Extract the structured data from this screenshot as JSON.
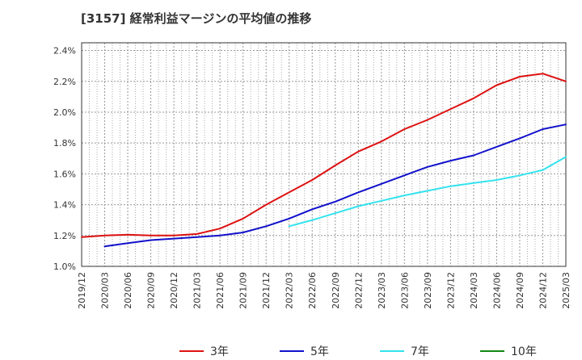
{
  "title": "[3157]  経常利益マージンの平均値の推移",
  "chart_data": {
    "type": "line",
    "title": "[3157]  経常利益マージンの平均値の推移",
    "xlabel": "",
    "ylabel": "",
    "x_ticks": [
      "2019/12",
      "2020/03",
      "2020/06",
      "2020/09",
      "2020/12",
      "2021/03",
      "2021/06",
      "2021/09",
      "2021/12",
      "2022/03",
      "2022/06",
      "2022/09",
      "2022/12",
      "2023/03",
      "2023/06",
      "2023/09",
      "2023/12",
      "2024/03",
      "2024/06",
      "2024/09",
      "2024/12",
      "2025/03"
    ],
    "y_ticks": [
      "1.0%",
      "1.2%",
      "1.4%",
      "1.6%",
      "1.8%",
      "2.0%",
      "2.2%",
      "2.4%"
    ],
    "ylim": [
      1.0,
      2.45
    ],
    "grid": true,
    "legend_position": "bottom",
    "series": [
      {
        "name": "3年",
        "color": "#dd1111",
        "points": [
          [
            "2019/12",
            1.19
          ],
          [
            "2020/03",
            1.2
          ],
          [
            "2020/06",
            1.205
          ],
          [
            "2020/09",
            1.2
          ],
          [
            "2020/12",
            1.2
          ],
          [
            "2021/03",
            1.21
          ],
          [
            "2021/06",
            1.245
          ],
          [
            "2021/09",
            1.31
          ],
          [
            "2021/12",
            1.4
          ],
          [
            "2022/03",
            1.48
          ],
          [
            "2022/06",
            1.56
          ],
          [
            "2022/09",
            1.655
          ],
          [
            "2022/12",
            1.745
          ],
          [
            "2023/03",
            1.81
          ],
          [
            "2023/06",
            1.89
          ],
          [
            "2023/09",
            1.95
          ],
          [
            "2023/12",
            2.02
          ],
          [
            "2024/03",
            2.09
          ],
          [
            "2024/06",
            2.175
          ],
          [
            "2024/09",
            2.23
          ],
          [
            "2024/12",
            2.25
          ],
          [
            "2025/03",
            2.2
          ]
        ]
      },
      {
        "name": "5年",
        "color": "#1111cc",
        "points": [
          [
            "2020/03",
            1.13
          ],
          [
            "2020/06",
            1.15
          ],
          [
            "2020/09",
            1.17
          ],
          [
            "2020/12",
            1.18
          ],
          [
            "2021/03",
            1.19
          ],
          [
            "2021/06",
            1.2
          ],
          [
            "2021/09",
            1.22
          ],
          [
            "2021/12",
            1.26
          ],
          [
            "2022/03",
            1.31
          ],
          [
            "2022/06",
            1.37
          ],
          [
            "2022/09",
            1.42
          ],
          [
            "2022/12",
            1.48
          ],
          [
            "2023/03",
            1.535
          ],
          [
            "2023/06",
            1.59
          ],
          [
            "2023/09",
            1.645
          ],
          [
            "2023/12",
            1.685
          ],
          [
            "2024/03",
            1.72
          ],
          [
            "2024/06",
            1.775
          ],
          [
            "2024/09",
            1.83
          ],
          [
            "2024/12",
            1.89
          ],
          [
            "2025/03",
            1.92
          ]
        ]
      },
      {
        "name": "7年",
        "color": "#33e3ee",
        "points": [
          [
            "2022/03",
            1.26
          ],
          [
            "2022/06",
            1.3
          ],
          [
            "2022/09",
            1.345
          ],
          [
            "2022/12",
            1.39
          ],
          [
            "2023/03",
            1.425
          ],
          [
            "2023/06",
            1.46
          ],
          [
            "2023/09",
            1.49
          ],
          [
            "2023/12",
            1.52
          ],
          [
            "2024/03",
            1.54
          ],
          [
            "2024/06",
            1.56
          ],
          [
            "2024/09",
            1.59
          ],
          [
            "2024/12",
            1.625
          ],
          [
            "2025/03",
            1.71
          ]
        ]
      },
      {
        "name": "10年",
        "color": "#118811",
        "points": []
      }
    ]
  }
}
